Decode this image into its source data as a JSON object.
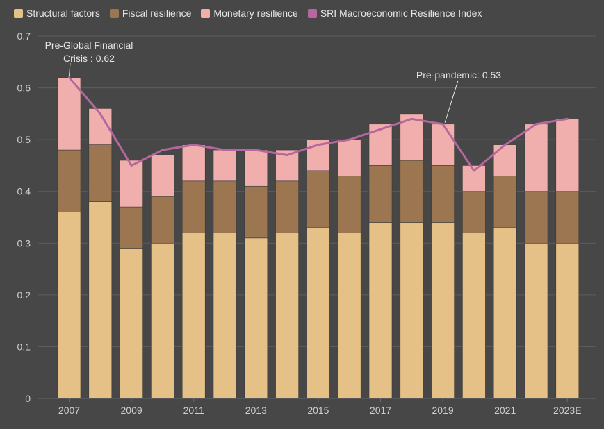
{
  "chart_data": {
    "type": "bar",
    "stacked": true,
    "categories": [
      "2007",
      "2008",
      "2009",
      "2010",
      "2011",
      "2012",
      "2013",
      "2014",
      "2015",
      "2016",
      "2017",
      "2018",
      "2019",
      "2020",
      "2021",
      "2022",
      "2023E"
    ],
    "x_tick_labels": [
      "2007",
      "2009",
      "2011",
      "2013",
      "2015",
      "2017",
      "2019",
      "2021",
      "2023E"
    ],
    "ylim": [
      0,
      0.7
    ],
    "y_ticks": [
      "0",
      "0.1",
      "0.2",
      "0.3",
      "0.4",
      "0.5",
      "0.6",
      "0.7"
    ],
    "grid": true,
    "legend_position": "top-left",
    "series": [
      {
        "name": "Structural factors",
        "type": "bar",
        "color": "#e6c187",
        "values": [
          0.36,
          0.38,
          0.29,
          0.3,
          0.32,
          0.32,
          0.31,
          0.32,
          0.33,
          0.32,
          0.34,
          0.34,
          0.34,
          0.32,
          0.33,
          0.3,
          0.3
        ]
      },
      {
        "name": "Fiscal resilience",
        "type": "bar",
        "color": "#9b7651",
        "values": [
          0.12,
          0.11,
          0.08,
          0.09,
          0.1,
          0.1,
          0.1,
          0.1,
          0.11,
          0.11,
          0.11,
          0.12,
          0.11,
          0.08,
          0.1,
          0.1,
          0.1
        ]
      },
      {
        "name": "Monetary resilience",
        "type": "bar",
        "color": "#f0aeac",
        "values": [
          0.14,
          0.07,
          0.09,
          0.08,
          0.07,
          0.06,
          0.07,
          0.06,
          0.06,
          0.07,
          0.08,
          0.09,
          0.08,
          0.05,
          0.06,
          0.13,
          0.14
        ]
      },
      {
        "name": "SRI Macroeconomic Resilience Index",
        "type": "line",
        "color": "#b5679e",
        "values": [
          0.62,
          0.55,
          0.45,
          0.48,
          0.49,
          0.48,
          0.48,
          0.47,
          0.49,
          0.5,
          0.52,
          0.54,
          0.53,
          0.44,
          0.49,
          0.53,
          0.54
        ]
      }
    ],
    "annotations": [
      {
        "lines": [
          "Pre-Global Financial",
          "Crisis : 0.62"
        ],
        "category": "2007",
        "value": 0.62
      },
      {
        "lines": [
          "Pre-pandemic: 0.53"
        ],
        "category": "2019",
        "value": 0.53
      }
    ]
  }
}
